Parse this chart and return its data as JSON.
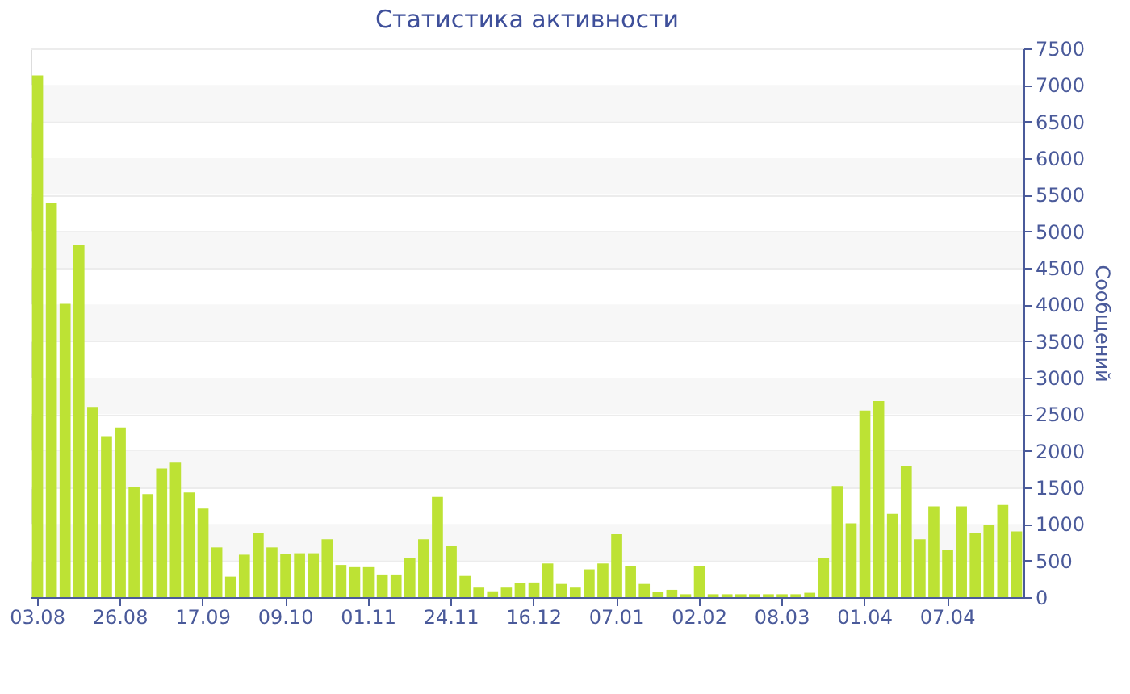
{
  "chart_data": {
    "type": "bar",
    "title": "Статистика активности",
    "ylabel": "Сообщений",
    "categories": [
      "03.08",
      null,
      null,
      null,
      null,
      null,
      "26.08",
      null,
      null,
      null,
      null,
      null,
      "17.09",
      null,
      null,
      null,
      null,
      null,
      "09.10",
      null,
      null,
      null,
      null,
      null,
      "01.11",
      null,
      null,
      null,
      null,
      null,
      "24.11",
      null,
      null,
      null,
      null,
      null,
      "16.12",
      null,
      null,
      null,
      null,
      null,
      "07.01",
      null,
      null,
      null,
      null,
      null,
      "02.02",
      null,
      null,
      null,
      null,
      null,
      "08.03",
      null,
      null,
      null,
      null,
      null,
      "01.04",
      null,
      null,
      null,
      null,
      null,
      "07.04",
      null,
      null,
      null,
      null,
      null
    ],
    "values": [
      7130,
      5390,
      4010,
      4820,
      2600,
      2200,
      2320,
      1510,
      1410,
      1760,
      1840,
      1430,
      1210,
      680,
      280,
      580,
      880,
      680,
      590,
      600,
      600,
      790,
      440,
      410,
      410,
      310,
      310,
      540,
      790,
      1370,
      700,
      290,
      130,
      80,
      130,
      190,
      200,
      460,
      180,
      130,
      380,
      460,
      860,
      430,
      180,
      70,
      100,
      40,
      430,
      40,
      40,
      40,
      40,
      40,
      40,
      40,
      60,
      540,
      1520,
      1010,
      2550,
      2680,
      1140,
      1790,
      790,
      1240,
      650,
      1240,
      880,
      990,
      1260,
      900
    ],
    "color": "#bde234",
    "ylim": [
      0,
      7500
    ],
    "yticks": [
      0,
      500,
      1000,
      1500,
      2000,
      2500,
      3000,
      3500,
      4000,
      4500,
      5000,
      5500,
      6000,
      6500,
      7000,
      7500
    ],
    "grid": "y"
  }
}
